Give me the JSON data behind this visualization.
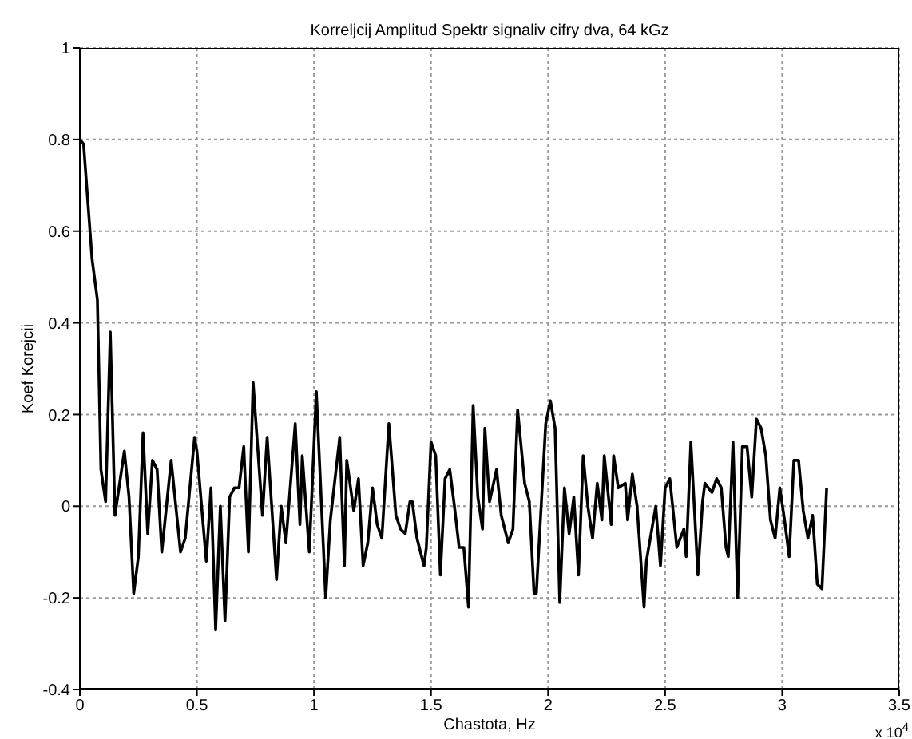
{
  "chart_data": {
    "type": "line",
    "title": "Korreljcij Amplitud Spektr signaliv cifry dva, 64 kGz",
    "xlabel": "Chastota, Hz",
    "ylabel": "Koef Korejcii",
    "annotations": [
      "x 10$^{4}$"
    ],
    "xlim": [
      0,
      3.5
    ],
    "xticks": [
      0,
      0.5,
      1,
      1.5,
      2,
      2.5,
      3,
      3.5
    ],
    "ylim": [
      -0.4,
      1
    ],
    "yticks": [
      -0.4,
      -0.2,
      0,
      0.2,
      0.4,
      0.6,
      0.8,
      1
    ],
    "grid": true,
    "legend": false,
    "marker": "none",
    "line_style": "solid",
    "series": [
      {
        "color": "#000000",
        "x": [
          0,
          0.016,
          0.052,
          0.075,
          0.09,
          0.11,
          0.13,
          0.15,
          0.19,
          0.21,
          0.23,
          0.25,
          0.27,
          0.29,
          0.31,
          0.33,
          0.35,
          0.39,
          0.43,
          0.45,
          0.49,
          0.5,
          0.54,
          0.56,
          0.58,
          0.6,
          0.62,
          0.64,
          0.66,
          0.68,
          0.7,
          0.72,
          0.74,
          0.78,
          0.8,
          0.84,
          0.86,
          0.88,
          0.92,
          0.94,
          0.95,
          0.98,
          1.01,
          1.05,
          1.07,
          1.11,
          1.13,
          1.14,
          1.17,
          1.19,
          1.21,
          1.23,
          1.25,
          1.27,
          1.29,
          1.32,
          1.35,
          1.37,
          1.39,
          1.41,
          1.42,
          1.44,
          1.47,
          1.48,
          1.5,
          1.52,
          1.54,
          1.56,
          1.58,
          1.6,
          1.62,
          1.64,
          1.66,
          1.68,
          1.7,
          1.72,
          1.73,
          1.75,
          1.78,
          1.8,
          1.83,
          1.85,
          1.87,
          1.9,
          1.92,
          1.94,
          1.95,
          1.99,
          2.01,
          2.03,
          2.05,
          2.07,
          2.09,
          2.11,
          2.13,
          2.15,
          2.17,
          2.19,
          2.21,
          2.23,
          2.24,
          2.27,
          2.28,
          2.3,
          2.33,
          2.34,
          2.36,
          2.38,
          2.41,
          2.42,
          2.46,
          2.48,
          2.5,
          2.52,
          2.55,
          2.58,
          2.59,
          2.61,
          2.64,
          2.66,
          2.67,
          2.7,
          2.72,
          2.74,
          2.76,
          2.77,
          2.79,
          2.81,
          2.83,
          2.85,
          2.87,
          2.89,
          2.91,
          2.93,
          2.95,
          2.97,
          2.99,
          3.01,
          3.03,
          3.05,
          3.07,
          3.09,
          3.11,
          3.13,
          3.15,
          3.17,
          3.19
        ],
        "values": [
          0.8,
          0.79,
          0.54,
          0.45,
          0.08,
          0.01,
          0.38,
          -0.02,
          0.12,
          0.02,
          -0.19,
          -0.11,
          0.16,
          -0.06,
          0.1,
          0.08,
          -0.1,
          0.1,
          -0.1,
          -0.07,
          0.15,
          0.12,
          -0.12,
          0.04,
          -0.27,
          0.0,
          -0.25,
          0.02,
          0.04,
          0.04,
          0.13,
          -0.1,
          0.27,
          -0.02,
          0.15,
          -0.16,
          0.0,
          -0.08,
          0.18,
          -0.04,
          0.11,
          -0.1,
          0.25,
          -0.2,
          -0.03,
          0.15,
          -0.13,
          0.1,
          -0.01,
          0.06,
          -0.13,
          -0.08,
          0.04,
          -0.04,
          -0.07,
          0.18,
          -0.02,
          -0.05,
          -0.06,
          0.01,
          0.01,
          -0.07,
          -0.13,
          -0.09,
          0.14,
          0.11,
          -0.15,
          0.06,
          0.08,
          0.0,
          -0.09,
          -0.09,
          -0.22,
          0.22,
          0.02,
          -0.05,
          0.17,
          0.01,
          0.08,
          -0.02,
          -0.08,
          -0.05,
          0.21,
          0.05,
          0.01,
          -0.19,
          -0.19,
          0.18,
          0.23,
          0.17,
          -0.21,
          0.04,
          -0.06,
          0.02,
          -0.15,
          0.11,
          0.0,
          -0.07,
          0.05,
          -0.03,
          0.11,
          -0.04,
          0.11,
          0.04,
          0.05,
          -0.03,
          0.07,
          0.0,
          -0.22,
          -0.12,
          0.0,
          -0.13,
          0.04,
          0.06,
          -0.09,
          -0.05,
          -0.11,
          0.14,
          -0.15,
          0.01,
          0.05,
          0.03,
          0.06,
          0.04,
          -0.09,
          -0.11,
          0.14,
          -0.2,
          0.13,
          0.13,
          0.02,
          0.19,
          0.17,
          0.11,
          -0.03,
          -0.07,
          0.04,
          -0.03,
          -0.11,
          0.1,
          0.1,
          -0.01,
          -0.07,
          -0.02,
          -0.17,
          -0.18,
          0.04
        ]
      }
    ]
  }
}
